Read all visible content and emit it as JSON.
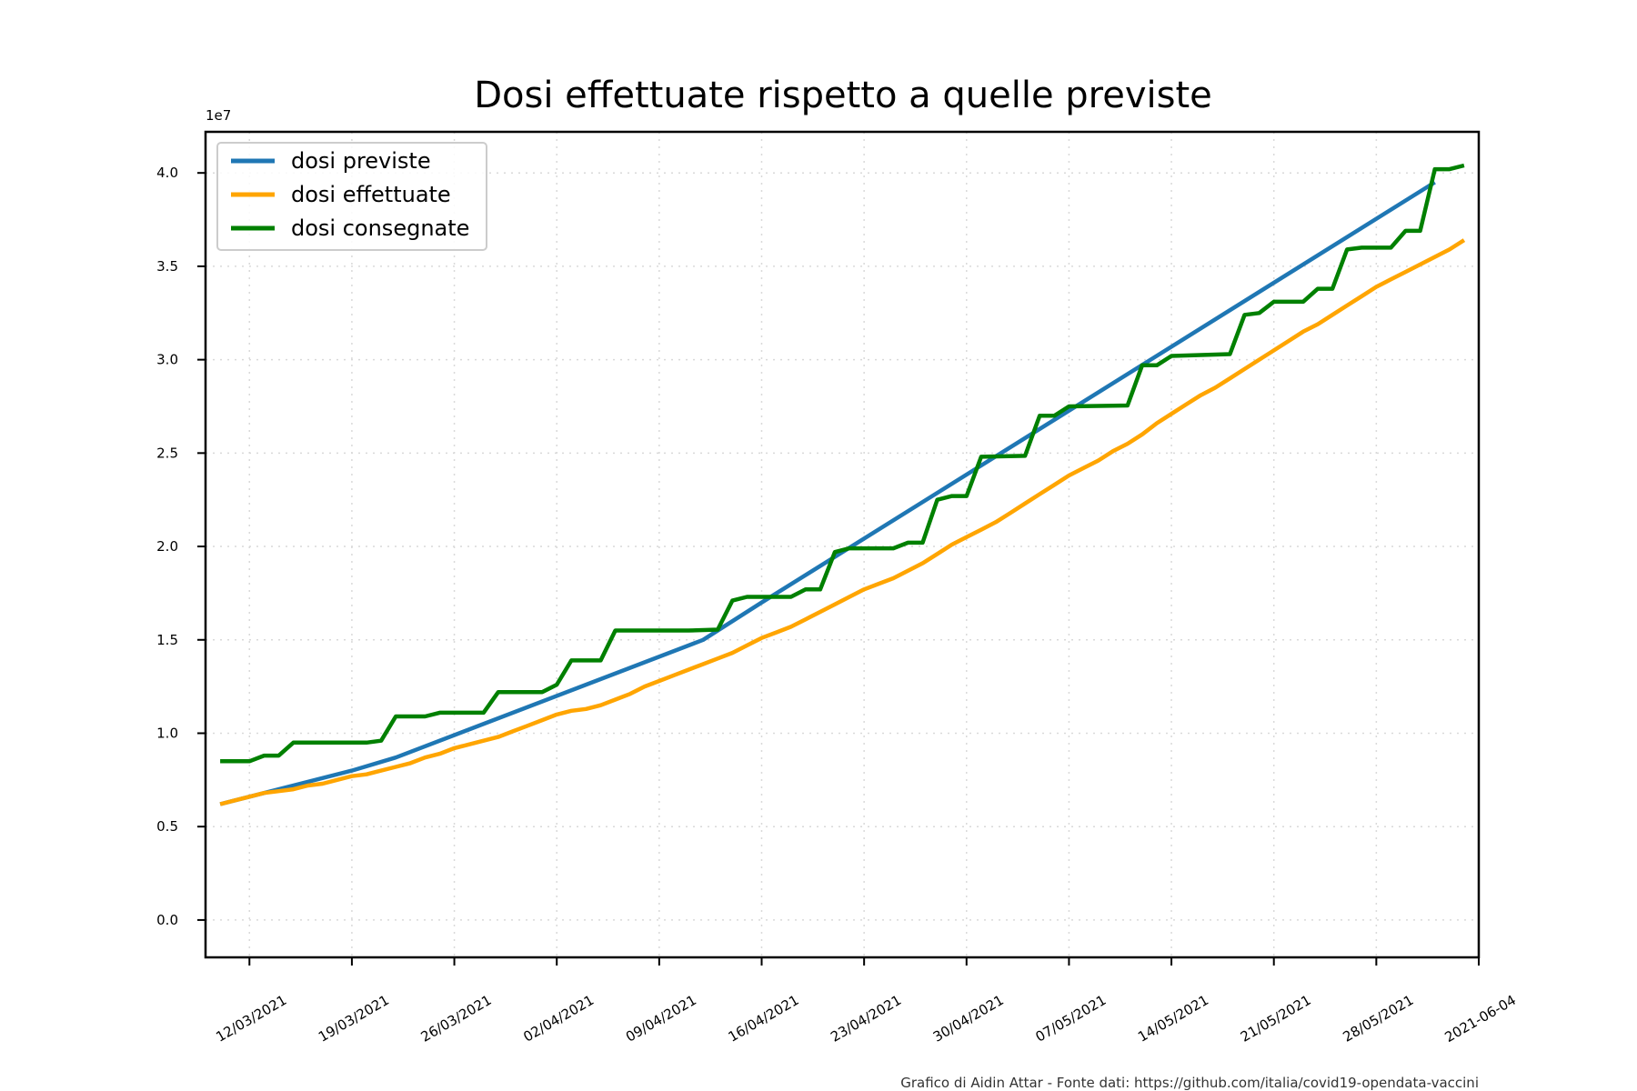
{
  "chart_data": {
    "type": "line",
    "title": "Dosi effettuate rispetto a quelle previste",
    "xlabel": "",
    "ylabel": "",
    "y_offset_label": "1e7",
    "ylim": [
      -0.2,
      4.22
    ],
    "xlim": [
      "2021-03-09",
      "2021-06-04"
    ],
    "grid": true,
    "legend_position": "top-left",
    "yticks": [
      0.0,
      0.5,
      1.0,
      1.5,
      2.0,
      2.5,
      3.0,
      3.5,
      4.0
    ],
    "ytick_labels": [
      "0.0",
      "0.5",
      "1.0",
      "1.5",
      "2.0",
      "2.5",
      "3.0",
      "3.5",
      "4.0"
    ],
    "xticks": [
      "2021-03-12",
      "2021-03-19",
      "2021-03-26",
      "2021-04-02",
      "2021-04-09",
      "2021-04-16",
      "2021-04-23",
      "2021-04-30",
      "2021-05-07",
      "2021-05-14",
      "2021-05-21",
      "2021-05-28",
      "2021-06-04"
    ],
    "xtick_labels": [
      "12/03/2021",
      "19/03/2021",
      "26/03/2021",
      "02/04/2021",
      "09/04/2021",
      "16/04/2021",
      "23/04/2021",
      "30/04/2021",
      "07/05/2021",
      "14/05/2021",
      "21/05/2021",
      "28/05/2021",
      "2021-06-04"
    ],
    "series": [
      {
        "name": "dosi previste",
        "color": "#1f77b4",
        "points": [
          [
            "2021-03-10",
            0.62
          ],
          [
            "2021-03-12",
            0.66
          ],
          [
            "2021-03-19",
            0.8
          ],
          [
            "2021-03-22",
            0.87
          ],
          [
            "2021-04-12",
            1.5
          ],
          [
            "2021-04-16",
            1.7
          ],
          [
            "2021-06-01",
            3.95
          ]
        ]
      },
      {
        "name": "dosi effettuate",
        "color": "#ffa500",
        "points": [
          [
            "2021-03-10",
            0.62
          ],
          [
            "2021-03-12",
            0.66
          ],
          [
            "2021-03-13",
            0.68
          ],
          [
            "2021-03-14",
            0.69
          ],
          [
            "2021-03-15",
            0.7
          ],
          [
            "2021-03-16",
            0.72
          ],
          [
            "2021-03-17",
            0.73
          ],
          [
            "2021-03-18",
            0.75
          ],
          [
            "2021-03-19",
            0.77
          ],
          [
            "2021-03-20",
            0.78
          ],
          [
            "2021-03-21",
            0.8
          ],
          [
            "2021-03-22",
            0.82
          ],
          [
            "2021-03-23",
            0.84
          ],
          [
            "2021-03-24",
            0.87
          ],
          [
            "2021-03-25",
            0.89
          ],
          [
            "2021-03-26",
            0.92
          ],
          [
            "2021-03-27",
            0.94
          ],
          [
            "2021-03-28",
            0.96
          ],
          [
            "2021-03-29",
            0.98
          ],
          [
            "2021-03-30",
            1.01
          ],
          [
            "2021-03-31",
            1.04
          ],
          [
            "2021-04-01",
            1.07
          ],
          [
            "2021-04-02",
            1.1
          ],
          [
            "2021-04-03",
            1.12
          ],
          [
            "2021-04-04",
            1.13
          ],
          [
            "2021-04-05",
            1.15
          ],
          [
            "2021-04-06",
            1.18
          ],
          [
            "2021-04-07",
            1.21
          ],
          [
            "2021-04-08",
            1.25
          ],
          [
            "2021-04-09",
            1.28
          ],
          [
            "2021-04-10",
            1.31
          ],
          [
            "2021-04-11",
            1.34
          ],
          [
            "2021-04-12",
            1.37
          ],
          [
            "2021-04-13",
            1.4
          ],
          [
            "2021-04-14",
            1.43
          ],
          [
            "2021-04-15",
            1.47
          ],
          [
            "2021-04-16",
            1.51
          ],
          [
            "2021-04-17",
            1.54
          ],
          [
            "2021-04-18",
            1.57
          ],
          [
            "2021-04-19",
            1.61
          ],
          [
            "2021-04-20",
            1.65
          ],
          [
            "2021-04-21",
            1.69
          ],
          [
            "2021-04-22",
            1.73
          ],
          [
            "2021-04-23",
            1.77
          ],
          [
            "2021-04-24",
            1.8
          ],
          [
            "2021-04-25",
            1.83
          ],
          [
            "2021-04-26",
            1.87
          ],
          [
            "2021-04-27",
            1.91
          ],
          [
            "2021-04-28",
            1.96
          ],
          [
            "2021-04-29",
            2.01
          ],
          [
            "2021-04-30",
            2.05
          ],
          [
            "2021-05-01",
            2.09
          ],
          [
            "2021-05-02",
            2.13
          ],
          [
            "2021-05-03",
            2.18
          ],
          [
            "2021-05-04",
            2.23
          ],
          [
            "2021-05-05",
            2.28
          ],
          [
            "2021-05-06",
            2.33
          ],
          [
            "2021-05-07",
            2.38
          ],
          [
            "2021-05-08",
            2.42
          ],
          [
            "2021-05-09",
            2.46
          ],
          [
            "2021-05-10",
            2.51
          ],
          [
            "2021-05-11",
            2.55
          ],
          [
            "2021-05-12",
            2.6
          ],
          [
            "2021-05-13",
            2.66
          ],
          [
            "2021-05-14",
            2.71
          ],
          [
            "2021-05-15",
            2.76
          ],
          [
            "2021-05-16",
            2.81
          ],
          [
            "2021-05-17",
            2.85
          ],
          [
            "2021-05-18",
            2.9
          ],
          [
            "2021-05-19",
            2.95
          ],
          [
            "2021-05-20",
            3.0
          ],
          [
            "2021-05-21",
            3.05
          ],
          [
            "2021-05-22",
            3.1
          ],
          [
            "2021-05-23",
            3.15
          ],
          [
            "2021-05-24",
            3.19
          ],
          [
            "2021-05-25",
            3.24
          ],
          [
            "2021-05-26",
            3.29
          ],
          [
            "2021-05-27",
            3.34
          ],
          [
            "2021-05-28",
            3.39
          ],
          [
            "2021-05-29",
            3.43
          ],
          [
            "2021-05-30",
            3.47
          ],
          [
            "2021-05-31",
            3.51
          ],
          [
            "2021-06-01",
            3.55
          ],
          [
            "2021-06-02",
            3.59
          ],
          [
            "2021-06-03",
            3.64
          ]
        ]
      },
      {
        "name": "dosi consegnate",
        "color": "#008000",
        "points": [
          [
            "2021-03-10",
            0.85
          ],
          [
            "2021-03-12",
            0.85
          ],
          [
            "2021-03-13",
            0.88
          ],
          [
            "2021-03-14",
            0.88
          ],
          [
            "2021-03-15",
            0.95
          ],
          [
            "2021-03-20",
            0.95
          ],
          [
            "2021-03-21",
            0.96
          ],
          [
            "2021-03-22",
            1.09
          ],
          [
            "2021-03-24",
            1.09
          ],
          [
            "2021-03-25",
            1.11
          ],
          [
            "2021-03-28",
            1.11
          ],
          [
            "2021-03-29",
            1.22
          ],
          [
            "2021-04-01",
            1.22
          ],
          [
            "2021-04-02",
            1.26
          ],
          [
            "2021-04-03",
            1.39
          ],
          [
            "2021-04-05",
            1.39
          ],
          [
            "2021-04-06",
            1.55
          ],
          [
            "2021-04-11",
            1.55
          ],
          [
            "2021-04-13",
            1.555
          ],
          [
            "2021-04-14",
            1.71
          ],
          [
            "2021-04-15",
            1.73
          ],
          [
            "2021-04-18",
            1.73
          ],
          [
            "2021-04-19",
            1.77
          ],
          [
            "2021-04-20",
            1.77
          ],
          [
            "2021-04-21",
            1.97
          ],
          [
            "2021-04-22",
            1.99
          ],
          [
            "2021-04-25",
            1.99
          ],
          [
            "2021-04-26",
            2.02
          ],
          [
            "2021-04-27",
            2.02
          ],
          [
            "2021-04-28",
            2.25
          ],
          [
            "2021-04-29",
            2.27
          ],
          [
            "2021-04-30",
            2.27
          ],
          [
            "2021-05-01",
            2.48
          ],
          [
            "2021-05-04",
            2.485
          ],
          [
            "2021-05-05",
            2.7
          ],
          [
            "2021-05-06",
            2.7
          ],
          [
            "2021-05-07",
            2.75
          ],
          [
            "2021-05-11",
            2.755
          ],
          [
            "2021-05-12",
            2.97
          ],
          [
            "2021-05-13",
            2.97
          ],
          [
            "2021-05-14",
            3.02
          ],
          [
            "2021-05-18",
            3.03
          ],
          [
            "2021-05-19",
            3.24
          ],
          [
            "2021-05-20",
            3.25
          ],
          [
            "2021-05-21",
            3.31
          ],
          [
            "2021-05-23",
            3.31
          ],
          [
            "2021-05-24",
            3.38
          ],
          [
            "2021-05-25",
            3.38
          ],
          [
            "2021-05-26",
            3.59
          ],
          [
            "2021-05-27",
            3.6
          ],
          [
            "2021-05-29",
            3.6
          ],
          [
            "2021-05-30",
            3.69
          ],
          [
            "2021-05-31",
            3.69
          ],
          [
            "2021-06-01",
            4.02
          ],
          [
            "2021-06-02",
            4.02
          ],
          [
            "2021-06-03",
            4.04
          ]
        ]
      }
    ]
  },
  "footer_text": "Grafico di Aidin Attar - Fonte dati: https://github.com/italia/covid19-opendata-vaccini"
}
